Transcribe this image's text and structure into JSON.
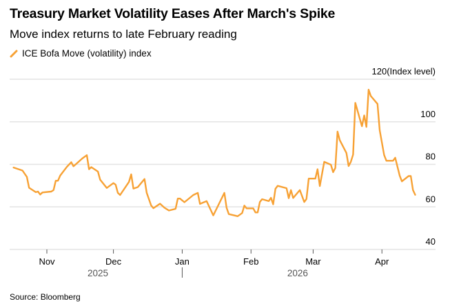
{
  "chart_data": {
    "type": "line",
    "title": "Treasury Market Volatility Eases After March's Spike",
    "subtitle": "Move index returns to late February reading",
    "ylabel": "(Index level)",
    "source": "Source: Bloomberg",
    "ylim": [
      40,
      120
    ],
    "yticks": [
      40,
      60,
      80,
      100,
      120
    ],
    "xlim": [
      "2025-10-12",
      "2026-04-22"
    ],
    "xticks": [
      {
        "date": "2025-11-01",
        "label": "Nov"
      },
      {
        "date": "2025-12-01",
        "label": "Dec"
      },
      {
        "date": "2026-01-01",
        "label": "Jan"
      },
      {
        "date": "2026-02-01",
        "label": "Feb"
      },
      {
        "date": "2026-03-01",
        "label": "Mar"
      },
      {
        "date": "2026-04-01",
        "label": "Apr"
      }
    ],
    "years": [
      {
        "label": "2025",
        "center": "2025-11-24"
      },
      {
        "label": "2026",
        "center": "2026-02-22"
      }
    ],
    "year_divider": "2026-01-01",
    "grid": true,
    "legend_position": "top-left",
    "colors": {
      "series": "#f7a134",
      "grid": "#e3e3e3"
    },
    "series": [
      {
        "name": "ICE Bofa Move (volatility) index",
        "points": [
          [
            "2025-10-17",
            78.5
          ],
          [
            "2025-10-21",
            77.1
          ],
          [
            "2025-10-23",
            74.1
          ],
          [
            "2025-10-24",
            69.0
          ],
          [
            "2025-10-27",
            66.9
          ],
          [
            "2025-10-28",
            67.2
          ],
          [
            "2025-10-29",
            65.8
          ],
          [
            "2025-10-30",
            66.8
          ],
          [
            "2025-11-03",
            67.2
          ],
          [
            "2025-11-04",
            67.9
          ],
          [
            "2025-11-05",
            72.3
          ],
          [
            "2025-11-06",
            72.3
          ],
          [
            "2025-11-07",
            74.7
          ],
          [
            "2025-11-10",
            78.8
          ],
          [
            "2025-11-12",
            81.0
          ],
          [
            "2025-11-13",
            79.1
          ],
          [
            "2025-11-14",
            80.0
          ],
          [
            "2025-11-17",
            82.8
          ],
          [
            "2025-11-19",
            84.3
          ],
          [
            "2025-11-20",
            77.7
          ],
          [
            "2025-11-21",
            78.7
          ],
          [
            "2025-11-24",
            76.6
          ],
          [
            "2025-11-25",
            72.8
          ],
          [
            "2025-11-28",
            68.9
          ],
          [
            "2025-12-01",
            71.2
          ],
          [
            "2025-12-02",
            70.4
          ],
          [
            "2025-12-03",
            66.6
          ],
          [
            "2025-12-04",
            65.6
          ],
          [
            "2025-12-08",
            71.7
          ],
          [
            "2025-12-09",
            75.3
          ],
          [
            "2025-12-10",
            68.6
          ],
          [
            "2025-12-12",
            69.3
          ],
          [
            "2025-12-15",
            73.1
          ],
          [
            "2025-12-16",
            66.6
          ],
          [
            "2025-12-18",
            60.7
          ],
          [
            "2025-12-19",
            59.4
          ],
          [
            "2025-12-22",
            61.5
          ],
          [
            "2025-12-24",
            59.6
          ],
          [
            "2025-12-26",
            58.3
          ],
          [
            "2025-12-29",
            59.1
          ],
          [
            "2025-12-30",
            63.9
          ],
          [
            "2025-12-31",
            63.9
          ],
          [
            "2026-01-02",
            62.2
          ],
          [
            "2026-01-06",
            65.6
          ],
          [
            "2026-01-08",
            66.6
          ],
          [
            "2026-01-09",
            61.4
          ],
          [
            "2026-01-12",
            62.7
          ],
          [
            "2026-01-15",
            56.0
          ],
          [
            "2026-01-20",
            66.6
          ],
          [
            "2026-01-21",
            59.6
          ],
          [
            "2026-01-22",
            56.6
          ],
          [
            "2026-01-26",
            55.6
          ],
          [
            "2026-01-28",
            57.1
          ],
          [
            "2026-01-29",
            60.6
          ],
          [
            "2026-01-30",
            59.3
          ],
          [
            "2026-02-02",
            59.3
          ],
          [
            "2026-02-03",
            57.4
          ],
          [
            "2026-02-04",
            57.4
          ],
          [
            "2026-02-05",
            62.3
          ],
          [
            "2026-02-06",
            63.6
          ],
          [
            "2026-02-09",
            62.7
          ],
          [
            "2026-02-10",
            64.3
          ],
          [
            "2026-02-11",
            61.2
          ],
          [
            "2026-02-12",
            68.5
          ],
          [
            "2026-02-13",
            69.9
          ],
          [
            "2026-02-17",
            68.8
          ],
          [
            "2026-02-18",
            64.1
          ],
          [
            "2026-02-19",
            67.9
          ],
          [
            "2026-02-20",
            64.2
          ],
          [
            "2026-02-23",
            67.9
          ],
          [
            "2026-02-25",
            62.3
          ],
          [
            "2026-02-26",
            63.7
          ],
          [
            "2026-02-27",
            73.3
          ],
          [
            "2026-03-02",
            73.3
          ],
          [
            "2026-03-03",
            77.7
          ],
          [
            "2026-03-04",
            69.8
          ],
          [
            "2026-03-06",
            81.2
          ],
          [
            "2026-03-09",
            79.8
          ],
          [
            "2026-03-10",
            76.3
          ],
          [
            "2026-03-11",
            78.3
          ],
          [
            "2026-03-12",
            95.4
          ],
          [
            "2026-03-13",
            91.4
          ],
          [
            "2026-03-16",
            85.3
          ],
          [
            "2026-03-17",
            79.2
          ],
          [
            "2026-03-18",
            81.2
          ],
          [
            "2026-03-19",
            84.6
          ],
          [
            "2026-03-20",
            108.9
          ],
          [
            "2026-03-23",
            97.9
          ],
          [
            "2026-03-24",
            103.0
          ],
          [
            "2026-03-25",
            97.6
          ],
          [
            "2026-03-26",
            115.1
          ],
          [
            "2026-03-27",
            112.1
          ],
          [
            "2026-03-30",
            108.4
          ],
          [
            "2026-03-31",
            96.0
          ],
          [
            "2026-04-02",
            84.4
          ],
          [
            "2026-04-03",
            81.7
          ],
          [
            "2026-04-06",
            81.7
          ],
          [
            "2026-04-07",
            83.1
          ],
          [
            "2026-04-09",
            74.7
          ],
          [
            "2026-04-10",
            72.0
          ],
          [
            "2026-04-13",
            74.5
          ],
          [
            "2026-04-14",
            74.5
          ],
          [
            "2026-04-15",
            67.9
          ],
          [
            "2026-04-16",
            65.7
          ]
        ]
      }
    ]
  }
}
